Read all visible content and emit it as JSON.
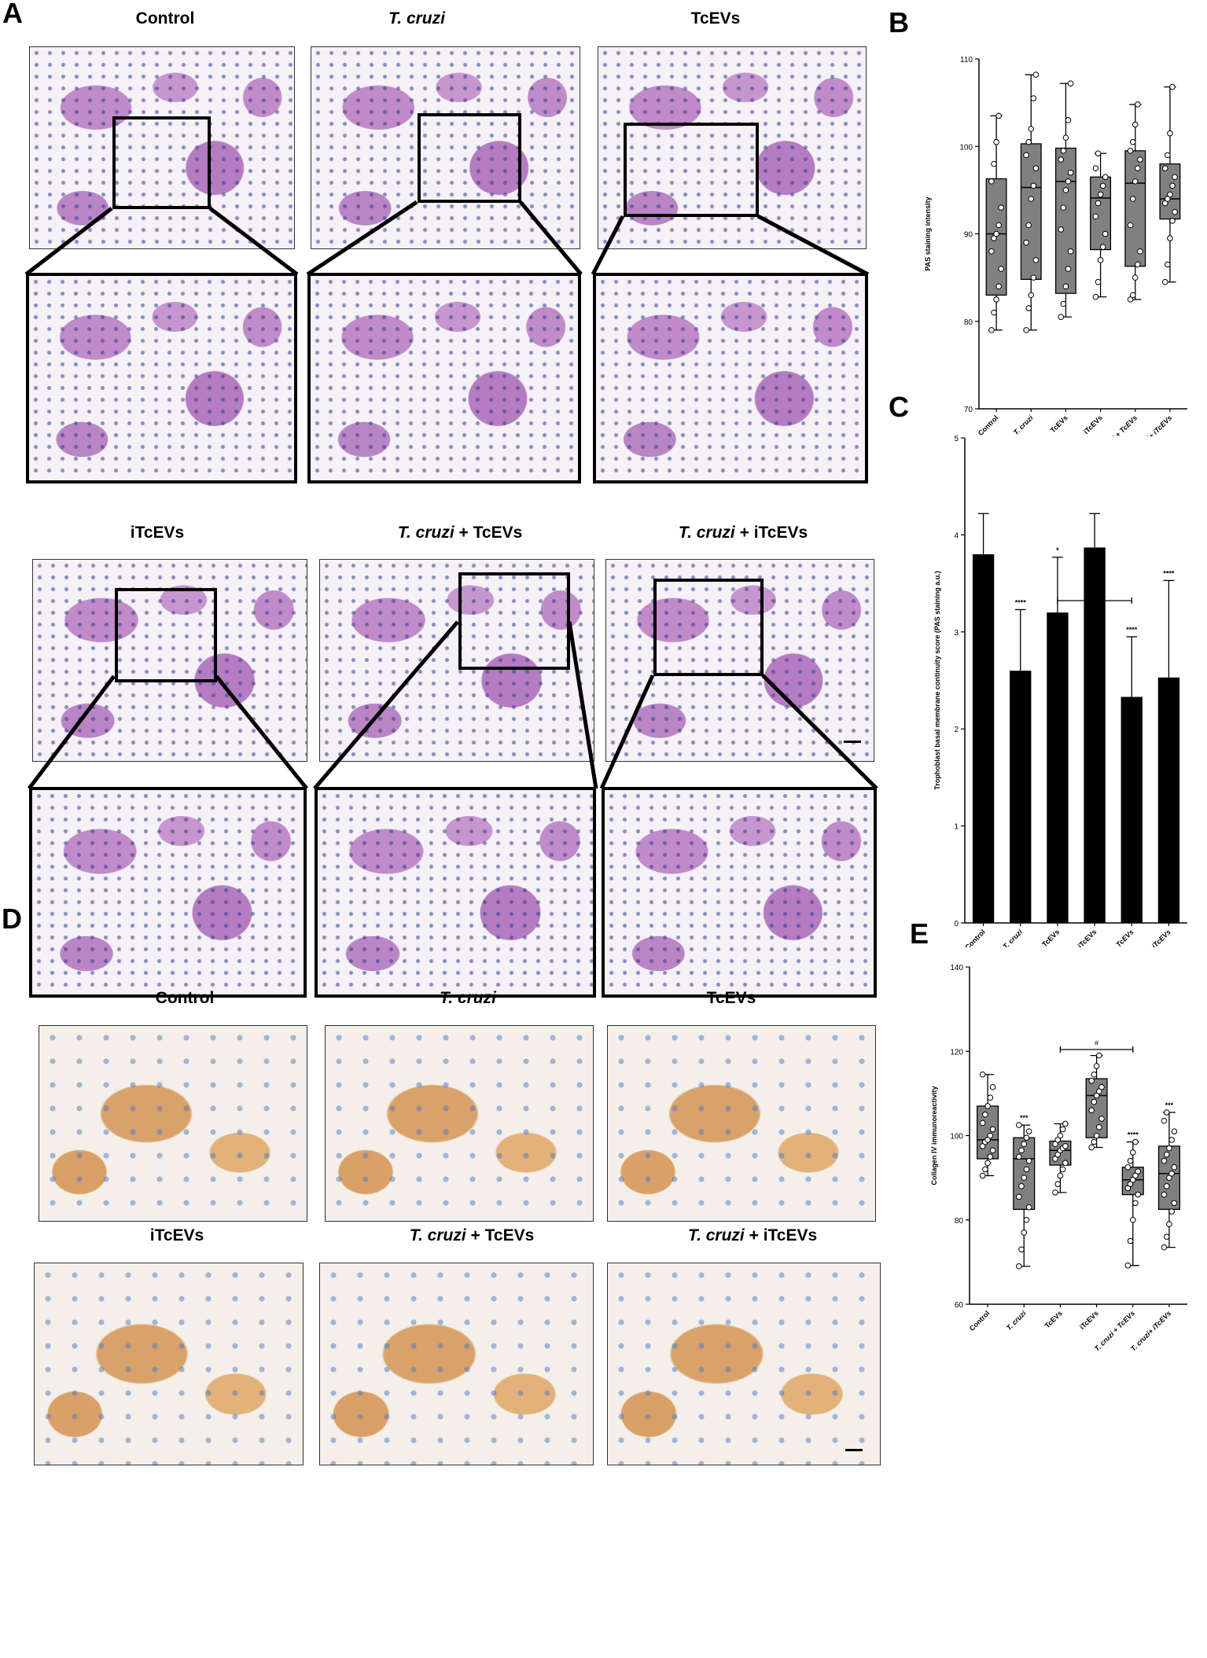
{
  "panels": {
    "A": "A",
    "B": "B",
    "C": "C",
    "D": "D",
    "E": "E"
  },
  "conditions": [
    {
      "italic": "",
      "plain": "Control"
    },
    {
      "italic": "T. cruzi",
      "plain": ""
    },
    {
      "italic": "",
      "plain": "TcEVs"
    },
    {
      "italic": "",
      "plain": "iTcEVs"
    },
    {
      "italic": "T. cruzi",
      "plain": " + TcEVs"
    },
    {
      "italic": "T. cruzi",
      "plain": " + iTcEVs"
    }
  ],
  "colors": {
    "box_fill": "#808080",
    "bar_fill": "#000000",
    "pas_stain": "#b57cc2",
    "hematoxylin": "#2c3c8f",
    "dab_stain": "#d8a26a"
  },
  "chart_data": [
    {
      "id": "B",
      "type": "box",
      "ylabel": "PAS staining intensity",
      "ylim": [
        70,
        110
      ],
      "yticks": [
        70,
        80,
        90,
        100,
        110
      ],
      "categories": [
        "Control",
        "T. cruzi",
        "TcEVs",
        "iTcEVs",
        "T. cruzi + TcEVs",
        "T. cruzi+ iTcEVs"
      ],
      "boxes": [
        {
          "min": 79,
          "q1": 83,
          "median": 90,
          "q3": 96.3,
          "max": 103.5
        },
        {
          "min": 79,
          "q1": 84.8,
          "median": 95.3,
          "q3": 100.3,
          "max": 108.2
        },
        {
          "min": 80.5,
          "q1": 83.2,
          "median": 96,
          "q3": 99.8,
          "max": 107.2
        },
        {
          "min": 82.8,
          "q1": 88.2,
          "median": 94.1,
          "q3": 96.5,
          "max": 99.2
        },
        {
          "min": 82.5,
          "q1": 86.3,
          "median": 95.8,
          "q3": 99.5,
          "max": 104.8
        },
        {
          "min": 84.5,
          "q1": 91.7,
          "median": 94,
          "q3": 98,
          "max": 106.8
        }
      ],
      "points": [
        [
          79,
          81,
          82.5,
          84,
          86,
          88,
          89.5,
          90,
          91,
          93,
          96,
          98,
          100.5,
          103.5
        ],
        [
          79,
          81.5,
          83,
          85,
          87,
          89,
          91,
          94,
          95.5,
          97.5,
          99,
          100.5,
          102,
          105.5,
          108.2
        ],
        [
          80.5,
          82,
          84,
          86,
          88,
          90.5,
          93,
          95,
          96,
          97,
          98.5,
          99.5,
          101,
          103,
          107.2
        ],
        [
          82.8,
          84.5,
          87,
          88.5,
          90,
          92,
          93.5,
          94.5,
          95.5,
          96.5,
          97.5,
          99.2
        ],
        [
          82.5,
          83,
          85,
          86.5,
          88,
          91,
          94,
          96,
          97.5,
          98.5,
          99.5,
          100.5,
          102.5,
          104.8
        ],
        [
          84.5,
          86.5,
          89.5,
          91.5,
          92.5,
          93.5,
          94,
          94.5,
          95.5,
          96.5,
          97.5,
          99,
          101.5,
          106.8
        ]
      ]
    },
    {
      "id": "C",
      "type": "bar",
      "ylabel": "Trophoblast basal membrane continuity score (PAS staining a.u.)",
      "ylim": [
        0,
        5
      ],
      "yticks": [
        0,
        1,
        2,
        3,
        4,
        5
      ],
      "categories": [
        "Control",
        "T. cruzi",
        "TcEVs",
        "iTcEVs",
        "T. cruzi + TcEVs",
        "T. cruzi+ iTcEVs"
      ],
      "values": [
        3.8,
        2.6,
        3.2,
        3.87,
        2.33,
        2.53
      ],
      "errors": [
        0.42,
        0.63,
        0.57,
        0.35,
        0.62,
        1.0
      ],
      "significance": [
        "",
        "****",
        "*",
        "",
        "****",
        "****"
      ],
      "bracket": {
        "from": 2,
        "to": 4,
        "label": "##"
      }
    },
    {
      "id": "E",
      "type": "box",
      "ylabel": "Collagen IV immunoreactivity",
      "ylim": [
        60,
        140
      ],
      "yticks": [
        60,
        80,
        100,
        120,
        140
      ],
      "categories": [
        "Control",
        "T. cruzi",
        "TcEVs",
        "iTcEVs",
        "T. cruzi + TcEVs",
        "T. cruzi+ iTcEVs"
      ],
      "boxes": [
        {
          "min": 90.5,
          "q1": 94.5,
          "median": 99,
          "q3": 107,
          "max": 114.5
        },
        {
          "min": 69,
          "q1": 82.5,
          "median": 94.5,
          "q3": 99.5,
          "max": 102.5
        },
        {
          "min": 86.5,
          "q1": 93,
          "median": 96.5,
          "q3": 98.7,
          "max": 102.8
        },
        {
          "min": 97.2,
          "q1": 99.5,
          "median": 109.5,
          "q3": 113.5,
          "max": 119
        },
        {
          "min": 69.2,
          "q1": 86,
          "median": 89.5,
          "q3": 92.5,
          "max": 98.5
        },
        {
          "min": 73.5,
          "q1": 82.5,
          "median": 91,
          "q3": 97.5,
          "max": 105.5
        }
      ],
      "points": [
        [
          90.5,
          92,
          93.5,
          95,
          96.5,
          97.5,
          98.5,
          99,
          100,
          101.5,
          103,
          105,
          107,
          109,
          111.5,
          114.5
        ],
        [
          69,
          73,
          77,
          80,
          83,
          85.5,
          88,
          90,
          92,
          94,
          95,
          96.5,
          98,
          99.5,
          101,
          102.5
        ],
        [
          86.5,
          88.5,
          90.5,
          92,
          93.5,
          94.5,
          95.5,
          96.5,
          97,
          97.5,
          98,
          99,
          100,
          101.5,
          102.8
        ],
        [
          97.2,
          98.5,
          100,
          102,
          104,
          106,
          108,
          109.5,
          110.5,
          111.5,
          113,
          114.5,
          116.5,
          119
        ],
        [
          69.2,
          75,
          80,
          84,
          86,
          87.5,
          88.5,
          89.5,
          90.5,
          91.5,
          92.5,
          94,
          96,
          98.5
        ],
        [
          73.5,
          76,
          79,
          82,
          84,
          86,
          88,
          90,
          91,
          92.5,
          94,
          95.5,
          97,
          99,
          101,
          103.5,
          105.5
        ]
      ],
      "significance": [
        "",
        "***",
        "",
        "",
        "****",
        "***"
      ],
      "bracket": {
        "from": 2,
        "to": 4,
        "label": "#"
      }
    }
  ]
}
